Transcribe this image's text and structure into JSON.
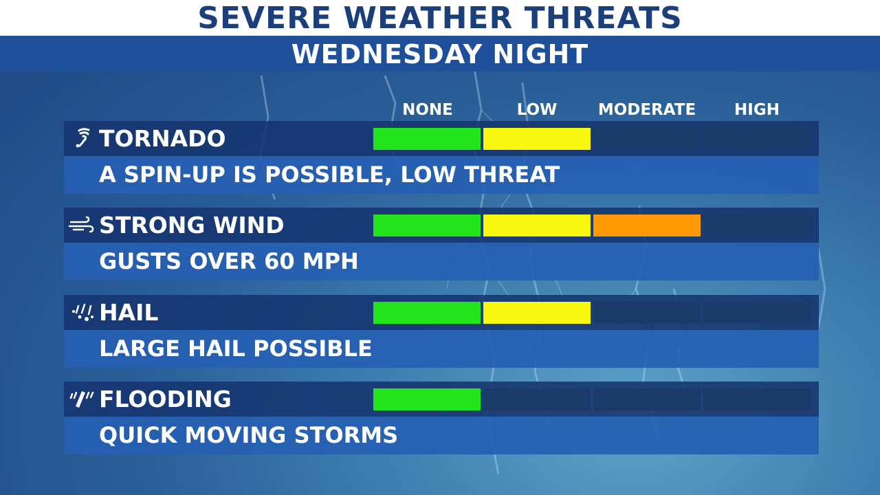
{
  "title": "SEVERE WEATHER THREATS",
  "subtitle": "WEDNESDAY NIGHT",
  "levels": [
    "NONE",
    "LOW",
    "MODERATE",
    "HIGH"
  ],
  "level_colors": [
    "#22e61b",
    "#f7f70f",
    "#ff9a06",
    "#d02020"
  ],
  "empty_color": "#1a3a6a",
  "threats": [
    {
      "icon": "tornado-icon",
      "label": "TORNADO",
      "description": "A SPIN-UP IS POSSIBLE, LOW THREAT",
      "filled_levels": 2
    },
    {
      "icon": "wind-icon",
      "label": "STRONG WIND",
      "description": "GUSTS OVER 60 MPH",
      "filled_levels": 3
    },
    {
      "icon": "hail-icon",
      "label": "HAIL",
      "description": "LARGE HAIL POSSIBLE",
      "filled_levels": 2
    },
    {
      "icon": "flooding-icon",
      "label": "FLOODING",
      "description": "QUICK MOVING STORMS",
      "filled_levels": 1
    }
  ]
}
